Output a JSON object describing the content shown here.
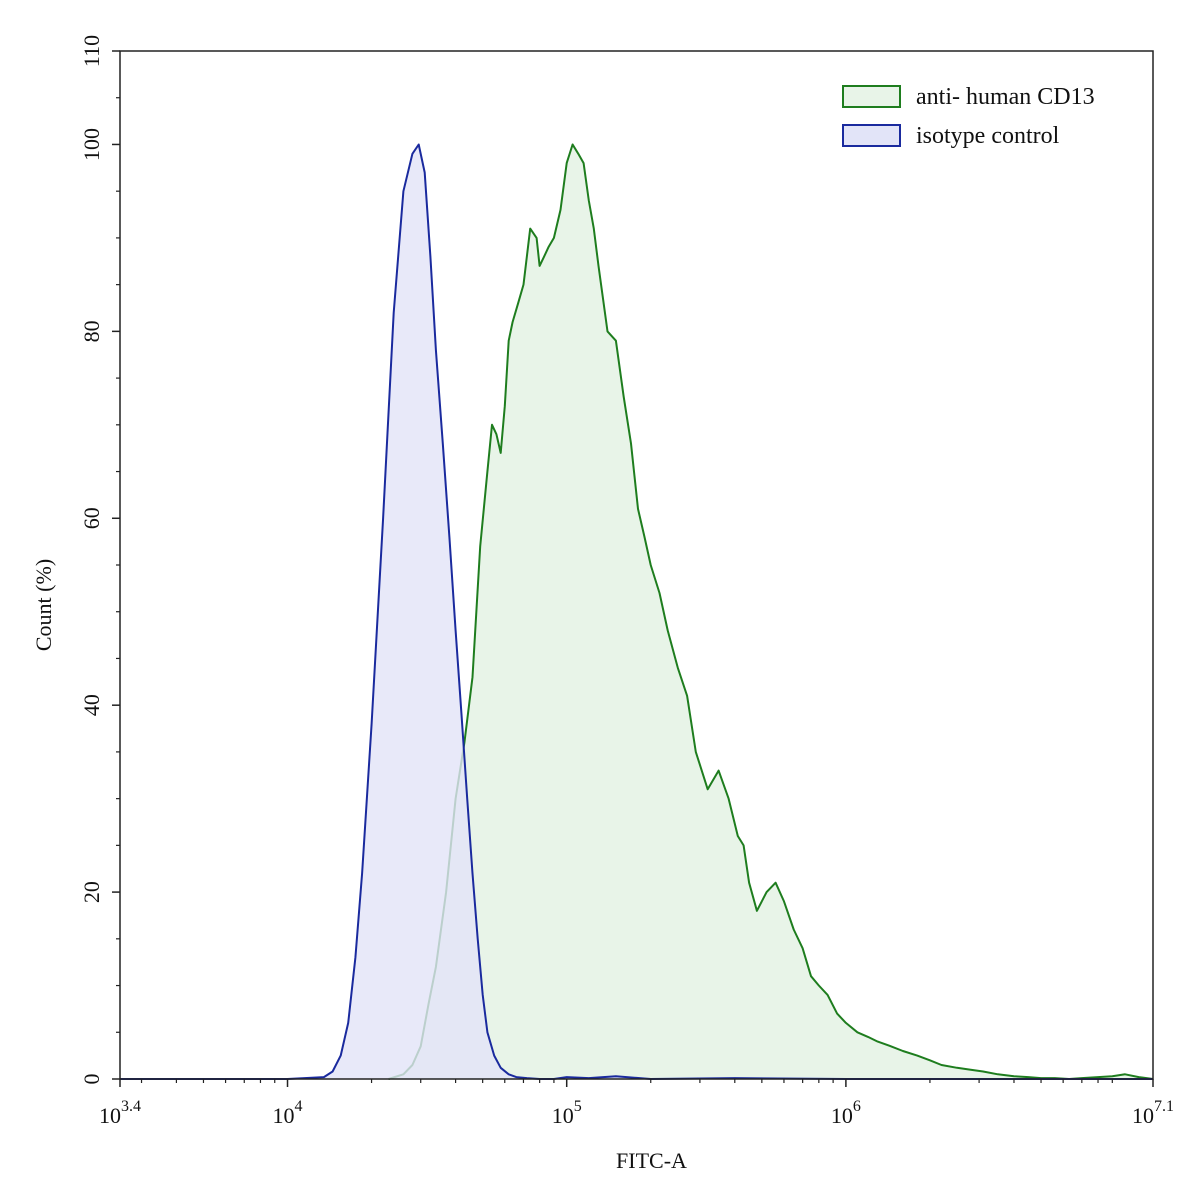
{
  "chart_data": {
    "type": "area",
    "title": "",
    "xlabel": "FITC-A",
    "ylabel": "Count  (%)",
    "x_scale": "log10",
    "xlim": [
      2511.886,
      12589254.1
    ],
    "ylim": [
      0,
      110
    ],
    "grid": false,
    "legend_position": "top-right",
    "x_ticks": [
      {
        "value": 2511.886,
        "base": "10",
        "exp": "3.4"
      },
      {
        "value": 10000,
        "base": "10",
        "exp": "4"
      },
      {
        "value": 100000,
        "base": "10",
        "exp": "5"
      },
      {
        "value": 1000000,
        "base": "10",
        "exp": "6"
      },
      {
        "value": 12589254.1,
        "base": "10",
        "exp": "7.1"
      }
    ],
    "y_ticks": [
      {
        "value": 0,
        "label": "0"
      },
      {
        "value": 20,
        "label": "20"
      },
      {
        "value": 40,
        "label": "40"
      },
      {
        "value": 60,
        "label": "60"
      },
      {
        "value": 80,
        "label": "80"
      },
      {
        "value": 100,
        "label": "100"
      },
      {
        "value": 110,
        "label": "110"
      }
    ],
    "series": [
      {
        "name": "anti- human CD13",
        "stroke": "#1e7d1e",
        "fill": "#e8f4e8",
        "x": [
          23000,
          26000,
          28000,
          30000,
          32000,
          34000,
          37000,
          40000,
          43000,
          46000,
          49000,
          52000,
          54000,
          56000,
          58000,
          60000,
          62000,
          64000,
          67000,
          70000,
          74000,
          78000,
          80000,
          83000,
          86000,
          90000,
          95000,
          100000,
          105000,
          110000,
          115000,
          120000,
          125000,
          130000,
          140000,
          150000,
          160000,
          170000,
          180000,
          190000,
          200000,
          215000,
          230000,
          250000,
          270000,
          290000,
          320000,
          350000,
          380000,
          410000,
          430000,
          450000,
          480000,
          520000,
          560000,
          600000,
          650000,
          700000,
          750000,
          800000,
          860000,
          930000,
          1000000,
          1100000,
          1200000,
          1300000,
          1450000,
          1600000,
          1800000,
          2000000,
          2200000,
          2500000,
          2800000,
          3100000,
          3500000,
          4000000,
          4500000,
          5000000,
          5600000,
          6300000,
          7000000,
          8000000,
          9000000,
          10000000,
          11200000,
          12589254
        ],
        "values": [
          0,
          0.5,
          1.5,
          3.5,
          8,
          12,
          20,
          30,
          36,
          43,
          57,
          65,
          70,
          69,
          67,
          72,
          79,
          81,
          83,
          85,
          91,
          90,
          87,
          88,
          89,
          90,
          93,
          98,
          100,
          99,
          98,
          94,
          91,
          87,
          80,
          79,
          73,
          68,
          61,
          58,
          55,
          52,
          48,
          44,
          41,
          35,
          31,
          33,
          30,
          26,
          25,
          21,
          18,
          20,
          21,
          19,
          16,
          14,
          11,
          10,
          9,
          7,
          6,
          5,
          4.5,
          4,
          3.5,
          3,
          2.5,
          2,
          1.5,
          1.2,
          1,
          0.8,
          0.5,
          0.3,
          0.2,
          0.1,
          0.1,
          0,
          0.1,
          0.2,
          0.3,
          0.5,
          0.2,
          0
        ],
        "legend_label": "anti- human CD13"
      },
      {
        "name": "isotype control",
        "stroke": "#1a2a9e",
        "fill": "#e2e4f8",
        "x": [
          2511.886,
          10000,
          13500,
          14500,
          15500,
          16500,
          17500,
          18500,
          20000,
          22000,
          24000,
          26000,
          28000,
          29500,
          31000,
          32500,
          34000,
          36000,
          38000,
          40000,
          42000,
          44000,
          46000,
          48000,
          50000,
          52000,
          55000,
          58000,
          62000,
          66000,
          72000,
          80000,
          90000,
          100000,
          120000,
          150000,
          200000,
          400000,
          1000000,
          12589254
        ],
        "values": [
          0,
          0,
          0.2,
          0.8,
          2.5,
          6,
          13,
          22,
          38,
          60,
          82,
          95,
          99,
          100,
          97,
          88,
          78,
          68,
          58,
          48,
          39,
          30,
          22,
          15,
          9,
          5,
          2.5,
          1.2,
          0.5,
          0.2,
          0.1,
          0,
          0,
          0.2,
          0.1,
          0.3,
          0,
          0.1,
          0,
          0
        ],
        "legend_label": "isotype control"
      }
    ]
  }
}
